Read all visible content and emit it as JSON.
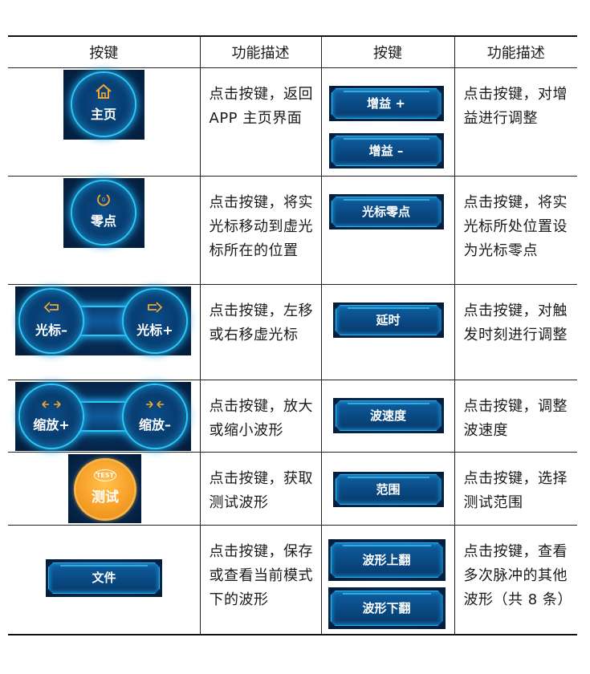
{
  "table": {
    "headers": [
      "按键",
      "功能描述",
      "按键",
      "功能描述"
    ],
    "rows": [
      {
        "left_buttons": [
          {
            "label": "主页",
            "icon": "home-icon"
          }
        ],
        "left_desc": "点击按键，返回 APP 主页界面",
        "right_buttons": [
          "增益 +",
          "增益 –"
        ],
        "right_desc": "点击按键，对增益进行调整"
      },
      {
        "left_buttons": [
          {
            "label": "零点",
            "icon": "zero-icon"
          }
        ],
        "left_desc": "点击按键，将实光标移动到虚光标所在的位置",
        "right_buttons": [
          "光标零点"
        ],
        "right_desc": "点击按键，将实光标所处位置设为光标零点"
      },
      {
        "left_buttons": [
          {
            "label": "光标–",
            "icon": "arrow-left-icon"
          },
          {
            "label": "光标+",
            "icon": "arrow-right-icon"
          }
        ],
        "left_desc": "点击按键，左移或右移虚光标",
        "right_buttons": [
          "延时"
        ],
        "right_desc": "点击按键，对触发时刻进行调整"
      },
      {
        "left_buttons": [
          {
            "label": "缩放+",
            "icon": "expand-icon"
          },
          {
            "label": "缩放–",
            "icon": "shrink-icon"
          }
        ],
        "left_desc": "点击按键，放大或缩小波形",
        "right_buttons": [
          "波速度"
        ],
        "right_desc": "点击按键，调整波速度"
      },
      {
        "left_buttons": [
          {
            "label": "测试",
            "badge": "TEST"
          }
        ],
        "left_desc": "点击按键，获取测试波形",
        "right_buttons": [
          "范围"
        ],
        "right_desc": "点击按键，选择测试范围"
      },
      {
        "left_buttons": [
          {
            "label": "文件"
          }
        ],
        "left_desc": "点击按键，保存或查看当前模式下的波形",
        "right_buttons": [
          "波形上翻",
          "波形下翻"
        ],
        "right_desc": "点击按键，查看多次脉冲的其他波形（共 8 条）"
      }
    ]
  },
  "colors": {
    "accent": "#2bc8f0",
    "panel": "#06244a",
    "icon": "#f3a732",
    "test": "#f7a12a"
  }
}
